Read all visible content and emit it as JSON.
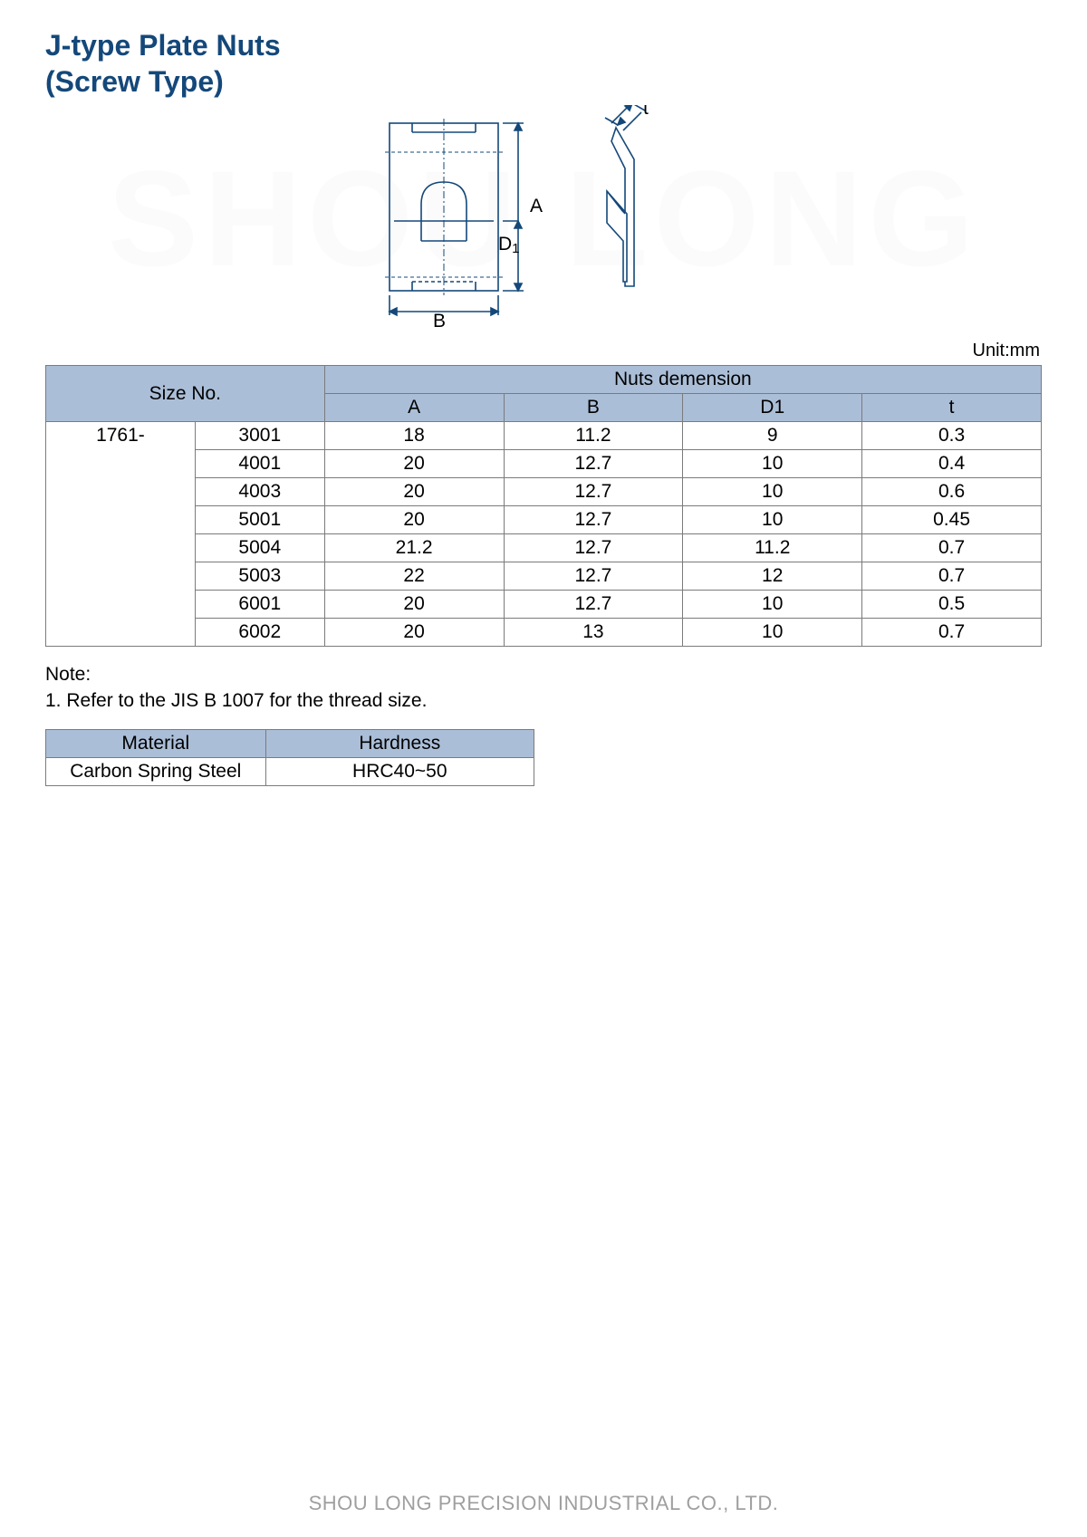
{
  "title_line1": "J-type Plate Nuts",
  "title_line2": "(Screw Type)",
  "watermark": "SHOU LONG",
  "unit_label": "Unit:mm",
  "diagram": {
    "labels": {
      "A": "A",
      "B": "B",
      "D1": "D1",
      "t": "t"
    },
    "stroke": "#14487a",
    "font_size": 21
  },
  "main_table": {
    "header_size": "Size No.",
    "header_dimension": "Nuts demension",
    "columns": [
      "A",
      "B",
      "D1",
      "t"
    ],
    "size_prefix": "1761-",
    "rows": [
      {
        "code": "3001",
        "A": "18",
        "B": "11.2",
        "D1": "9",
        "t": "0.3"
      },
      {
        "code": "4001",
        "A": "20",
        "B": "12.7",
        "D1": "10",
        "t": "0.4"
      },
      {
        "code": "4003",
        "A": "20",
        "B": "12.7",
        "D1": "10",
        "t": "0.6"
      },
      {
        "code": "5001",
        "A": "20",
        "B": "12.7",
        "D1": "10",
        "t": "0.45"
      },
      {
        "code": "5004",
        "A": "21.2",
        "B": "12.7",
        "D1": "11.2",
        "t": "0.7"
      },
      {
        "code": "5003",
        "A": "22",
        "B": "12.7",
        "D1": "12",
        "t": "0.7"
      },
      {
        "code": "6001",
        "A": "20",
        "B": "12.7",
        "D1": "10",
        "t": "0.5"
      },
      {
        "code": "6002",
        "A": "20",
        "B": "13",
        "D1": "10",
        "t": "0.7"
      }
    ]
  },
  "note_heading": "Note:",
  "note_1": "1. Refer to the JIS B 1007 for the thread size.",
  "material_table": {
    "headers": [
      "Material",
      "Hardness"
    ],
    "row": [
      "Carbon Spring Steel",
      "HRC40~50"
    ]
  },
  "footer": "SHOU LONG PRECISION INDUSTRIAL CO., LTD.",
  "colors": {
    "title": "#14487a",
    "header_bg": "#abbed7",
    "border": "#7b7b7b",
    "footer": "#9f9f9f",
    "watermark": "#fbfbfb"
  }
}
